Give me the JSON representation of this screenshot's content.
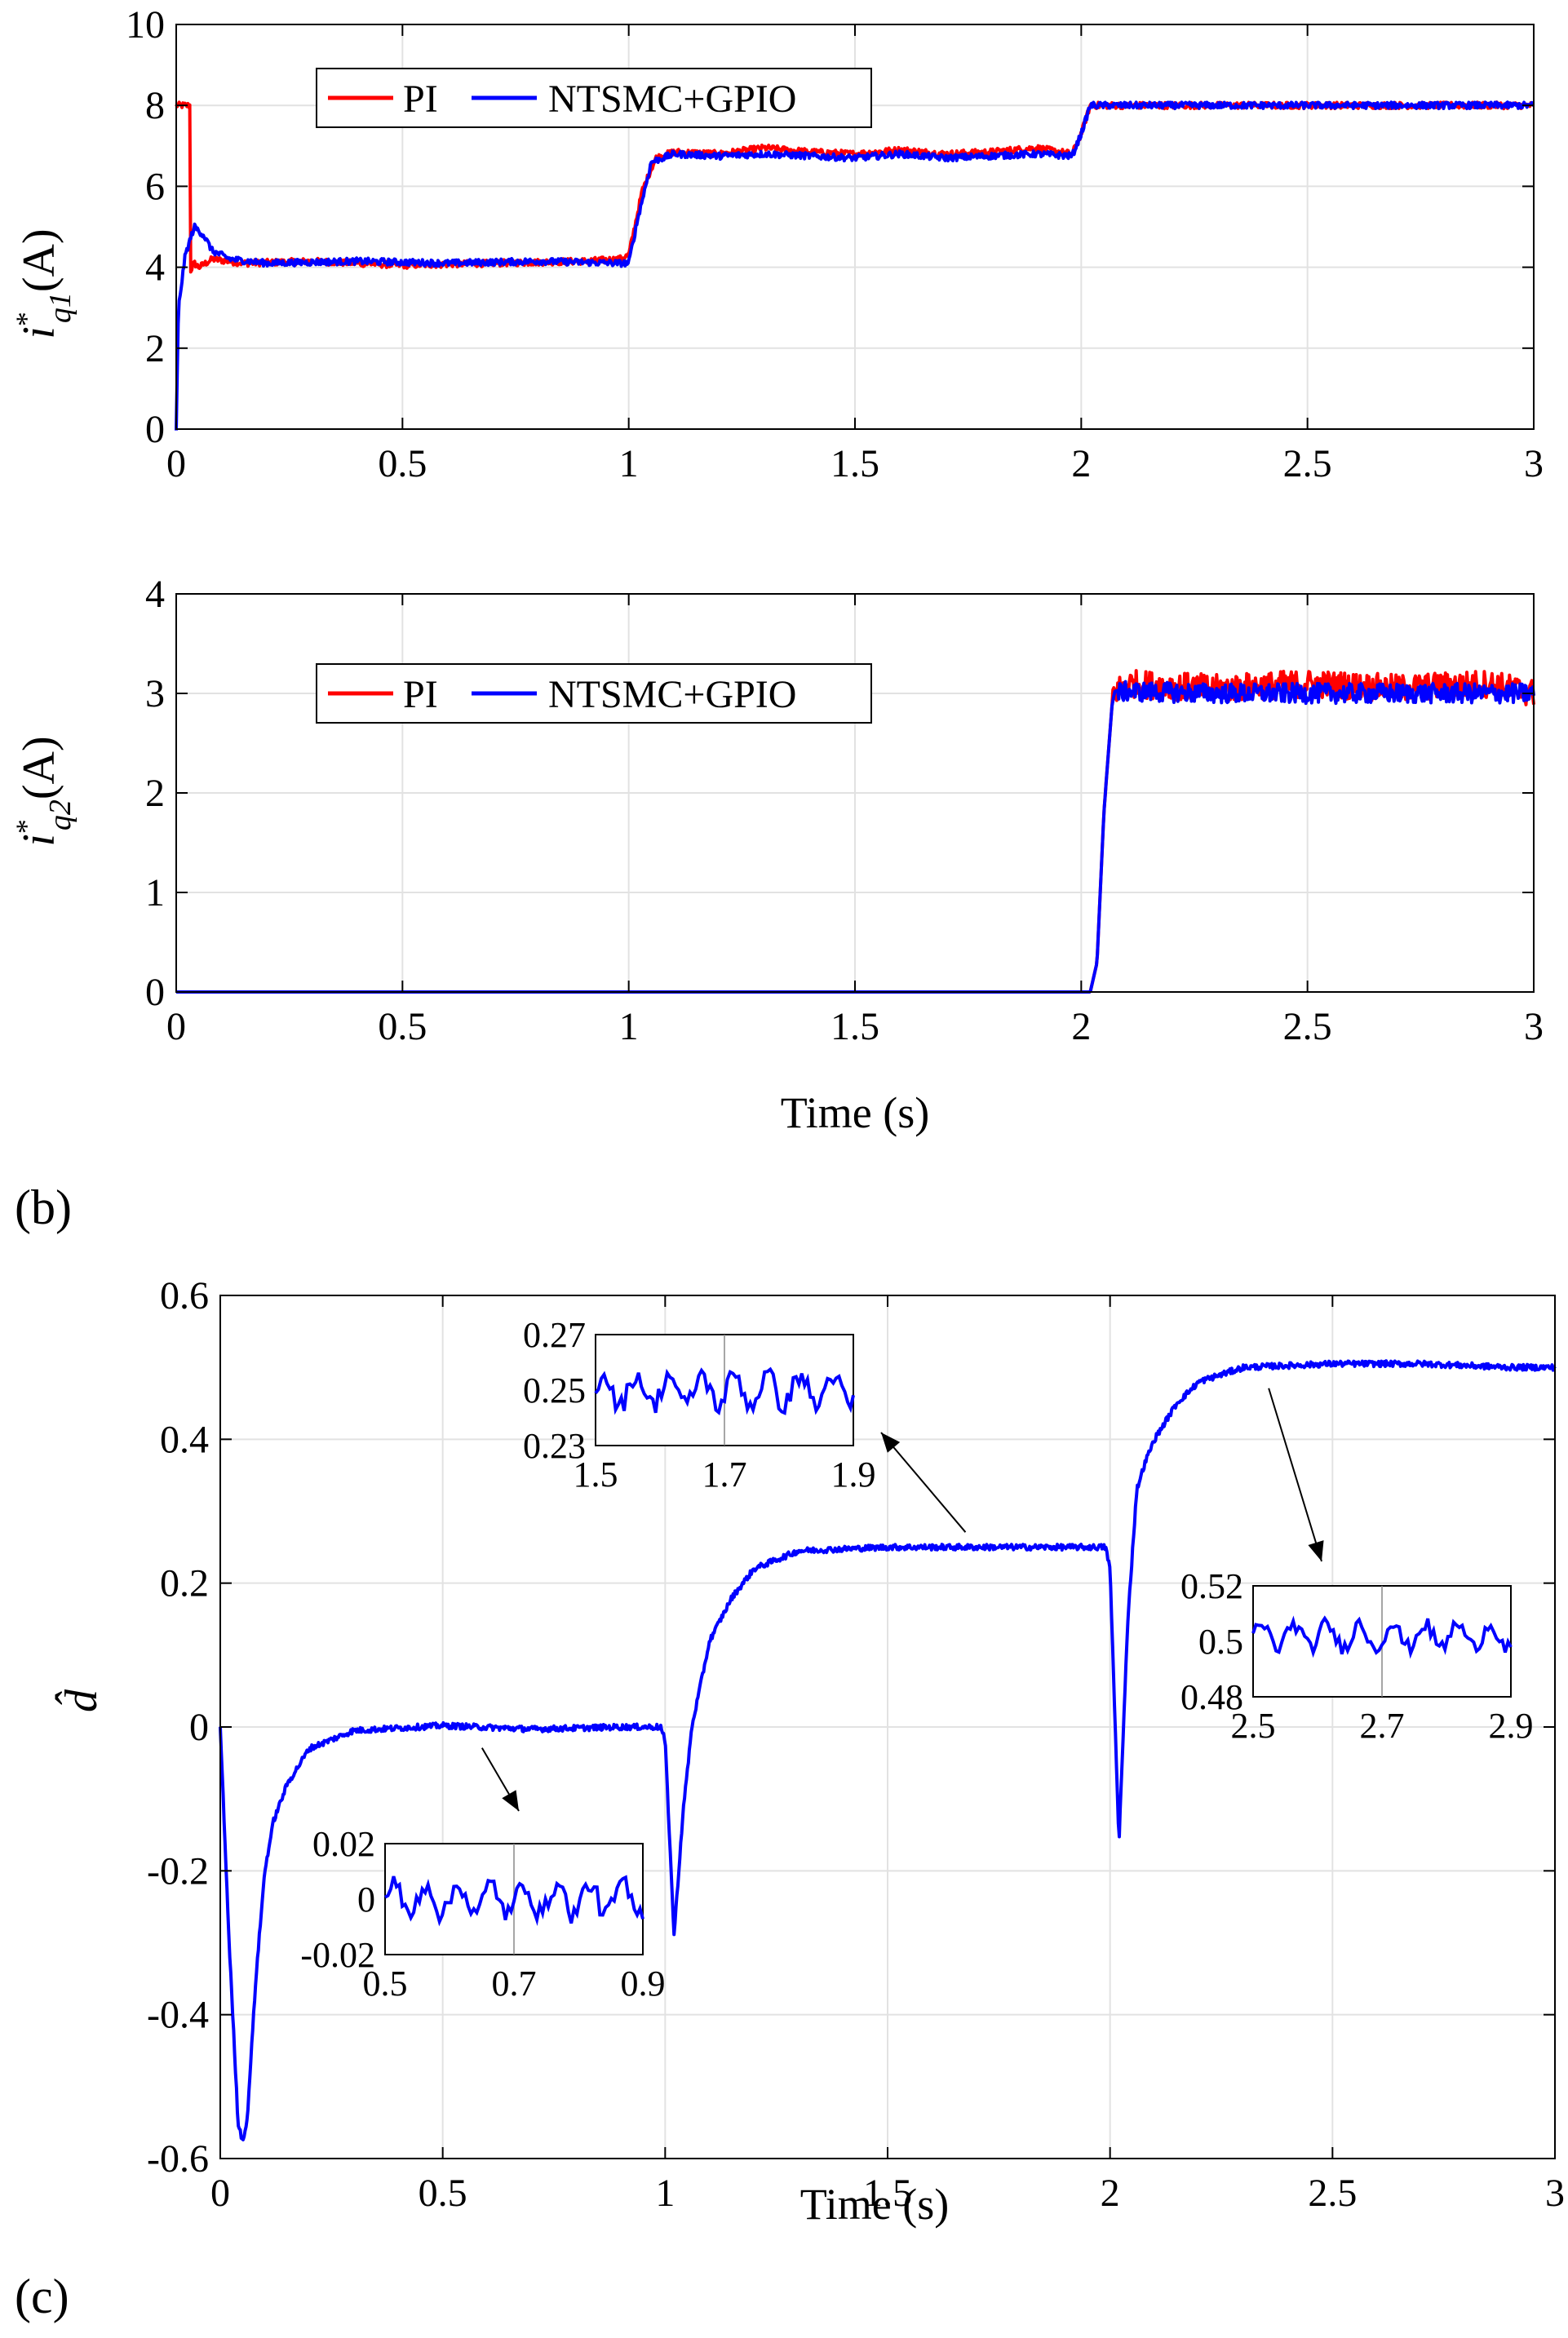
{
  "figure": {
    "panel_b_label": "(b)",
    "panel_c_label": "(c)"
  },
  "colors": {
    "pi": "#ff0000",
    "ntsmc": "#0000ff",
    "grid": "#e2e2e2",
    "axis": "#000000"
  },
  "chart_data": [
    {
      "id": "iq1",
      "type": "line",
      "title": "",
      "xlabel": "",
      "ylabel": "i*q1(A)",
      "xlim": [
        0,
        3
      ],
      "ylim": [
        0,
        10
      ],
      "xticks": [
        0,
        0.5,
        1,
        1.5,
        2,
        2.5,
        3
      ],
      "xtick_labels": [
        "0",
        "0.5",
        "1",
        "1.5",
        "2",
        "2.5",
        "3"
      ],
      "yticks": [
        0,
        2,
        4,
        6,
        8,
        10
      ],
      "ytick_labels": [
        "0",
        "2",
        "4",
        "6",
        "8",
        "10"
      ],
      "grid": true,
      "legend": "top-left",
      "series": [
        {
          "name": "PI",
          "color": "#ff0000",
          "x": [
            0,
            0.03,
            0.031,
            0.04,
            0.05,
            0.08,
            0.15,
            0.3,
            0.5,
            0.7,
            0.9,
            0.98,
            1.0,
            1.03,
            1.06,
            1.1,
            1.2,
            1.3,
            1.4,
            1.5,
            1.6,
            1.7,
            1.8,
            1.9,
            1.98,
            2.0,
            2.02,
            2.1,
            2.5,
            3.0
          ],
          "values": [
            8,
            8,
            3.9,
            4.1,
            4.0,
            4.2,
            4.1,
            4.15,
            4.05,
            4.1,
            4.15,
            4.2,
            4.3,
            5.9,
            6.7,
            6.85,
            6.8,
            6.95,
            6.85,
            6.8,
            6.9,
            6.8,
            6.85,
            6.95,
            6.8,
            7.3,
            8,
            8,
            8,
            8
          ]
        },
        {
          "name": "NTSMC+GPIO",
          "color": "#0000ff",
          "x": [
            0,
            0.005,
            0.02,
            0.04,
            0.06,
            0.08,
            0.12,
            0.2,
            0.4,
            0.6,
            0.8,
            0.98,
            1.0,
            1.02,
            1.05,
            1.1,
            1.2,
            1.3,
            1.4,
            1.5,
            1.6,
            1.7,
            1.8,
            1.9,
            1.98,
            2.0,
            2.02,
            2.1,
            2.5,
            3.0
          ],
          "values": [
            0,
            3.0,
            4.3,
            5.0,
            4.8,
            4.4,
            4.2,
            4.1,
            4.15,
            4.1,
            4.15,
            4.1,
            4.1,
            5.2,
            6.6,
            6.8,
            6.75,
            6.8,
            6.75,
            6.7,
            6.8,
            6.7,
            6.75,
            6.8,
            6.75,
            7.3,
            8,
            8,
            8,
            8
          ]
        }
      ]
    },
    {
      "id": "iq2",
      "type": "line",
      "title": "",
      "xlabel": "Time (s)",
      "ylabel": "i*q2(A)",
      "xlim": [
        0,
        3
      ],
      "ylim": [
        0,
        4
      ],
      "xticks": [
        0,
        0.5,
        1,
        1.5,
        2,
        2.5,
        3
      ],
      "xtick_labels": [
        "0",
        "0.5",
        "1",
        "1.5",
        "2",
        "2.5",
        "3"
      ],
      "yticks": [
        0,
        1,
        2,
        3,
        4
      ],
      "ytick_labels": [
        "0",
        "1",
        "2",
        "3",
        "4"
      ],
      "grid": true,
      "legend": "top-left",
      "series": [
        {
          "name": "PI",
          "color": "#ff0000",
          "x": [
            0,
            2.02,
            2.035,
            2.05,
            2.07,
            2.1,
            2.3,
            2.5,
            2.7,
            2.9,
            3.0
          ],
          "values": [
            0,
            0,
            0.3,
            1.8,
            3.0,
            3.1,
            3.05,
            3.1,
            3.05,
            3.1,
            3.0
          ],
          "noise_start_x": 2.07,
          "noise_amplitude": 0.14
        },
        {
          "name": "NTSMC+GPIO",
          "color": "#0000ff",
          "x": [
            0,
            2.02,
            2.035,
            2.05,
            2.07,
            2.1,
            2.3,
            2.5,
            2.7,
            2.9,
            3.0
          ],
          "values": [
            0,
            0,
            0.3,
            1.8,
            3.0,
            3.02,
            3.0,
            3.0,
            3.0,
            3.0,
            3.0
          ],
          "noise_start_x": 2.07,
          "noise_amplitude": 0.1
        }
      ]
    },
    {
      "id": "dhat",
      "type": "line",
      "title": "",
      "xlabel": "Time (s)",
      "ylabel": "d̂",
      "xlim": [
        0,
        3
      ],
      "ylim": [
        -0.6,
        0.6
      ],
      "xticks": [
        0,
        0.5,
        1,
        1.5,
        2,
        2.5,
        3
      ],
      "xtick_labels": [
        "0",
        "0.5",
        "1",
        "1.5",
        "2",
        "2.5",
        "3"
      ],
      "yticks": [
        -0.6,
        -0.4,
        -0.2,
        0,
        0.2,
        0.4,
        0.6
      ],
      "ytick_labels": [
        "-0.6",
        "-0.4",
        "-0.2",
        "0",
        "0.2",
        "0.4",
        "0.6"
      ],
      "grid": true,
      "legend": "none",
      "series": [
        {
          "name": "NTSMC+GPIO",
          "color": "#0000ff",
          "x": [
            0,
            0.02,
            0.04,
            0.05,
            0.06,
            0.08,
            0.1,
            0.12,
            0.15,
            0.2,
            0.3,
            0.5,
            0.7,
            0.9,
            0.99,
            1.0,
            1.02,
            1.04,
            1.06,
            1.1,
            1.15,
            1.2,
            1.3,
            1.5,
            1.7,
            1.9,
            1.99,
            2.0,
            2.02,
            2.04,
            2.06,
            2.08,
            2.1,
            2.15,
            2.2,
            2.3,
            2.5,
            2.7,
            2.9,
            3.0
          ],
          "values": [
            0,
            -0.3,
            -0.55,
            -0.575,
            -0.55,
            -0.35,
            -0.2,
            -0.13,
            -0.08,
            -0.03,
            -0.005,
            0.002,
            -0.003,
            0.0,
            0.0,
            -0.02,
            -0.29,
            -0.12,
            0.0,
            0.12,
            0.18,
            0.22,
            0.245,
            0.25,
            0.25,
            0.25,
            0.25,
            0.22,
            -0.16,
            0.15,
            0.33,
            0.37,
            0.4,
            0.45,
            0.48,
            0.5,
            0.505,
            0.505,
            0.5,
            0.5
          ]
        }
      ],
      "insets": [
        {
          "xlim": [
            0.5,
            0.9
          ],
          "ylim": [
            -0.02,
            0.02
          ],
          "xtick_labels": [
            "0.5",
            "0.7",
            "0.9"
          ],
          "ytick_labels": [
            "0.02",
            "0",
            "-0.02"
          ],
          "center": 0.0,
          "amplitude": 0.008,
          "arrow_target_x": 0.68,
          "arrow_target_y": 0.005
        },
        {
          "xlim": [
            1.5,
            1.9
          ],
          "ylim": [
            0.23,
            0.27
          ],
          "xtick_labels": [
            "1.5",
            "1.7",
            "1.9"
          ],
          "ytick_labels": [
            "0.27",
            "0.25",
            "0.23"
          ],
          "center": 0.25,
          "amplitude": 0.008,
          "arrow_target_x": 1.62,
          "arrow_target_y": 0.255
        },
        {
          "xlim": [
            2.5,
            2.9
          ],
          "ylim": [
            0.48,
            0.52
          ],
          "xtick_labels": [
            "2.5",
            "2.7",
            "2.9"
          ],
          "ytick_labels": [
            "0.52",
            "0.5",
            "0.48"
          ],
          "center": 0.502,
          "amplitude": 0.006,
          "arrow_target_x": 2.43,
          "arrow_target_y": 0.505
        }
      ]
    }
  ]
}
